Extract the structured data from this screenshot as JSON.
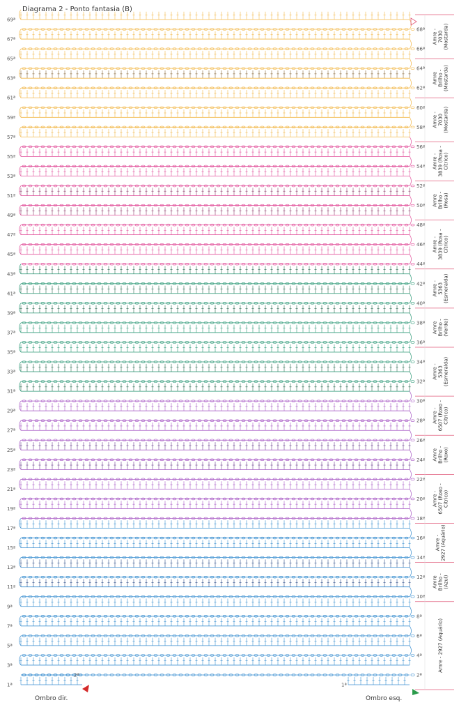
{
  "title": "Diagrama 2 - Ponto fantasia (B)",
  "colors": {
    "mostarda": "#f2b84a",
    "mostarda_dark": "#8a6a3a",
    "rosa": "#e2529c",
    "rosa_dark": "#8e3a6a",
    "esmeralda": "#2f9a78",
    "esmeralda_dark": "#2a6a50",
    "roxo": "#a85bc5",
    "roxo_dark": "#6a3f8e",
    "azul": "#3b8fd0",
    "azul_dark": "#2f4f8a",
    "divider": "#e05a7a"
  },
  "rows_left": [
    "69ª",
    "67ª",
    "65ª",
    "63ª",
    "61ª",
    "59ª",
    "57ª",
    "55ª",
    "53ª",
    "51ª",
    "49ª",
    "47ª",
    "45ª",
    "43ª",
    "41ª",
    "39ª",
    "37ª",
    "35ª",
    "33ª",
    "31ª",
    "29ª",
    "27ª",
    "25ª",
    "23ª",
    "21ª",
    "19ª",
    "17ª",
    "15ª",
    "13ª",
    "11ª",
    "9ª",
    "7ª",
    "5ª",
    "3ª",
    "1ª"
  ],
  "rows_right": [
    "68ª",
    "66ª",
    "64ª",
    "62ª",
    "60ª",
    "58ª",
    "56ª",
    "54ª",
    "52ª",
    "50ª",
    "48ª",
    "46ª",
    "44ª",
    "42ª",
    "40ª",
    "38ª",
    "36ª",
    "34ª",
    "32ª",
    "30ª",
    "28ª",
    "26ª",
    "24ª",
    "22ª",
    "20ª",
    "18ª",
    "16ª",
    "14ª",
    "12ª",
    "10ª",
    "8ª",
    "6ª",
    "4ª",
    "2ª"
  ],
  "small_labels": {
    "left_2": "2ª",
    "right_1": "1ª"
  },
  "bands": [
    {
      "text": [
        "Amre -",
        "7030",
        "(Mostarda)"
      ],
      "color_key": "mostarda"
    },
    {
      "text": [
        "Amre",
        "Brilho -",
        "(Mostarda)"
      ],
      "color_key": "mostarda"
    },
    {
      "text": [
        "Amre -",
        "7030",
        "(Mostarda)"
      ],
      "color_key": "mostarda"
    },
    {
      "text": [
        "Amre -",
        "3839 (Rosa -",
        "Cítrico)"
      ],
      "color_key": "rosa"
    },
    {
      "text": [
        "Amre",
        "Brilho -",
        "(Rosa)"
      ],
      "color_key": "rosa"
    },
    {
      "text": [
        "Amre -",
        "3839 (Rosa -",
        "Cítrico)"
      ],
      "color_key": "rosa"
    },
    {
      "text": [
        "Amre -",
        "5363",
        "(Esmeralda)"
      ],
      "color_key": "esmeralda"
    },
    {
      "text": [
        "Amre",
        "Brilho -",
        "(Verde)"
      ],
      "color_key": "esmeralda"
    },
    {
      "text": [
        "Amre -",
        "5363",
        "(Esmeralda)"
      ],
      "color_key": "esmeralda"
    },
    {
      "text": [
        "Amre -",
        "6507 (Roxo -",
        "Cítrico)"
      ],
      "color_key": "roxo"
    },
    {
      "text": [
        "Amre",
        "Brilho -",
        "(Roxo)"
      ],
      "color_key": "roxo"
    },
    {
      "text": [
        "Amre -",
        "6507 (Roxo -",
        "Cítrico)"
      ],
      "color_key": "roxo"
    },
    {
      "text": [
        "Amre -",
        "2927 (Aquário)"
      ],
      "color_key": "azul"
    },
    {
      "text": [
        "Amre",
        "Brilho -",
        "(Azul)"
      ],
      "color_key": "azul"
    },
    {
      "text": [
        "Amre - 2927 (Aquário)"
      ],
      "color_key": "azul"
    }
  ],
  "footer": {
    "left": "Ombro dir.",
    "right": "Ombro esq."
  }
}
